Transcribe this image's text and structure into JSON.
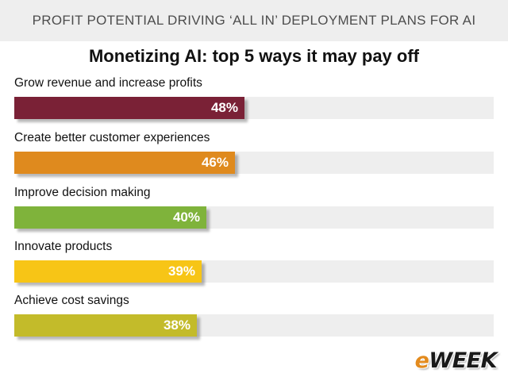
{
  "header": {
    "title": "PROFIT POTENTIAL DRIVING ‘ALL IN’ DEPLOYMENT PLANS FOR AI"
  },
  "logo": {
    "prefix": "e",
    "rest": "WEEK"
  },
  "chart_data": {
    "type": "bar",
    "orientation": "horizontal",
    "title": "Monetizing AI: top 5 ways it may pay off",
    "categories": [
      "Grow revenue and increase profits",
      "Create better customer experiences",
      "Improve decision making",
      "Innovate products",
      "Achieve cost savings"
    ],
    "values": [
      48,
      46,
      40,
      39,
      38
    ],
    "value_labels": [
      "48%",
      "46%",
      "40%",
      "39%",
      "38%"
    ],
    "colors": [
      "#7a2136",
      "#df8a1e",
      "#7fb33b",
      "#f7c516",
      "#c3bb2a"
    ],
    "track_color": "#eeeeee",
    "xlim": [
      0,
      100
    ],
    "grid": false,
    "legend": "none"
  }
}
